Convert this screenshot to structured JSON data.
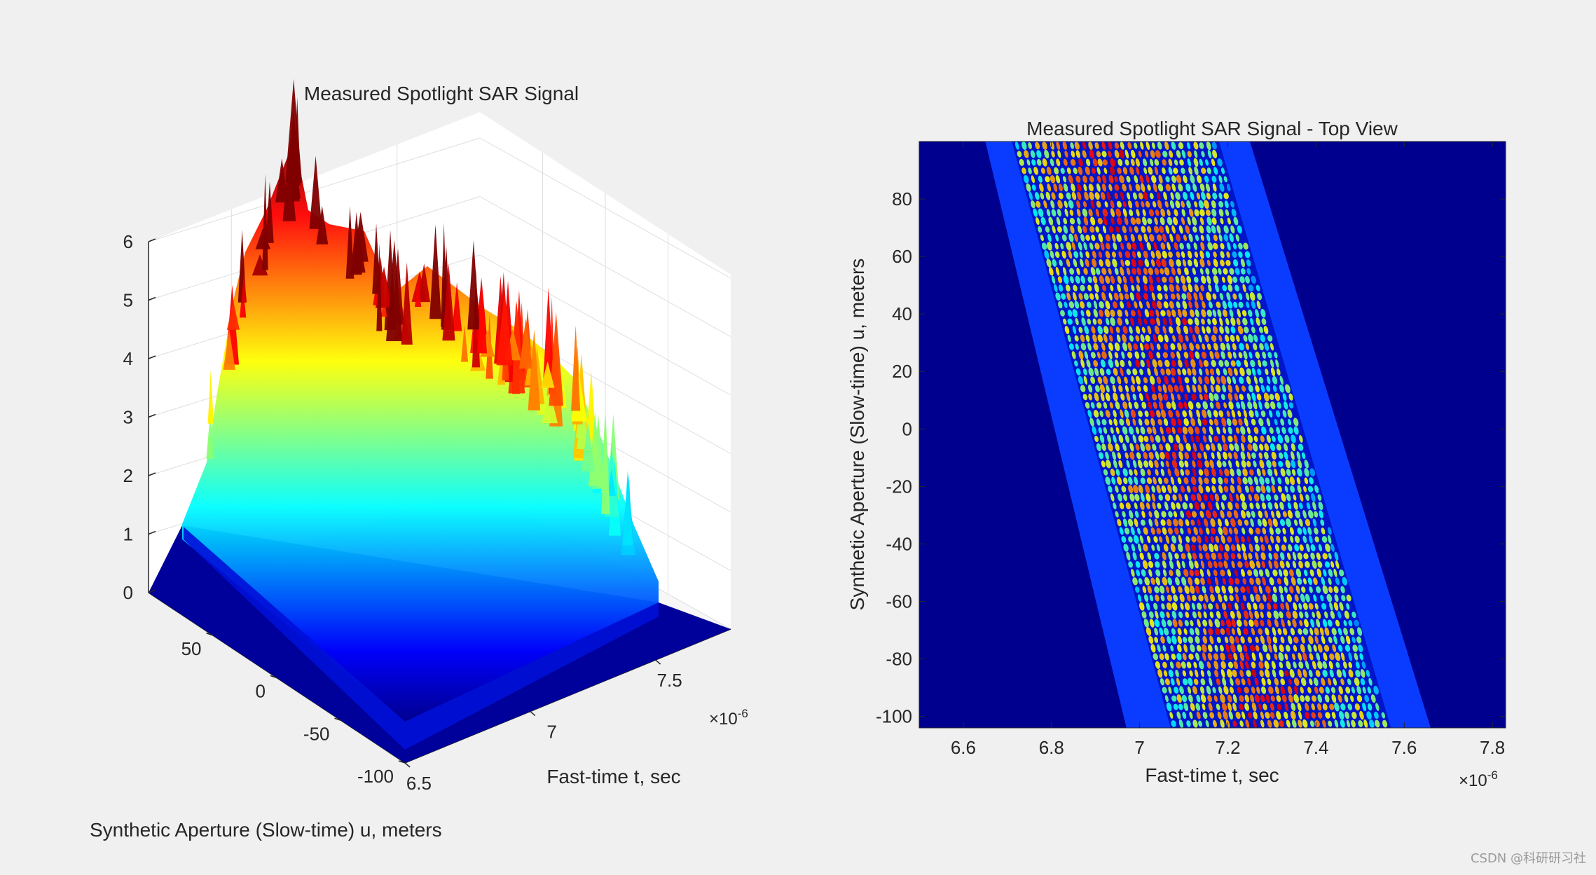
{
  "chart_data": [
    {
      "type": "surface",
      "title": "Measured Spotlight SAR Signal",
      "xlabel": "Fast-time t, sec",
      "ylabel": "Synthetic Aperture (Slow-time) u, meters",
      "x_multiplier": "×10",
      "x_exponent": "-6",
      "colormap": "jet",
      "xlim": [
        6.5,
        7.8
      ],
      "ylim": [
        -100,
        100
      ],
      "zlim": [
        0,
        6
      ],
      "x_ticks": [
        "6.5",
        "7",
        "7.5"
      ],
      "y_ticks": [
        "-100",
        "-50",
        "0",
        "50"
      ],
      "z_ticks": [
        "0",
        "1",
        "2",
        "3",
        "4",
        "5",
        "6"
      ],
      "view": "3-D perspective"
    },
    {
      "type": "heatmap",
      "title": "Measured Spotlight SAR Signal - Top View",
      "xlabel": "Fast-time t, sec",
      "ylabel": "Synthetic Aperture (Slow-time) u, meters",
      "x_multiplier": "×10",
      "x_exponent": "-6",
      "colormap": "jet",
      "xlim": [
        6.5,
        7.83
      ],
      "ylim": [
        -104,
        100
      ],
      "x_ticks": [
        "6.6",
        "6.8",
        "7",
        "7.2",
        "7.4",
        "7.6",
        "7.8"
      ],
      "y_ticks": [
        "80",
        "60",
        "40",
        "20",
        "0",
        "-20",
        "-40",
        "-60",
        "-80",
        "-100"
      ],
      "band": {
        "outer_left_at_top": 6.65,
        "outer_right_at_top": 7.25,
        "outer_left_at_bottom": 6.97,
        "outer_right_at_bottom": 7.66,
        "inner_left_at_top": 6.71,
        "inner_right_at_top": 7.18,
        "inner_left_at_bottom": 7.07,
        "inner_right_at_bottom": 7.57
      }
    }
  ],
  "watermark": "CSDN @科研研习社"
}
